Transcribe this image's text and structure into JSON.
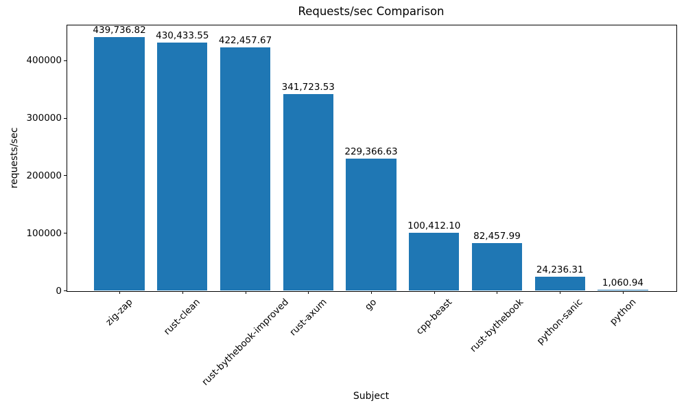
{
  "chart_data": {
    "type": "bar",
    "title": "Requests/sec Comparison",
    "xlabel": "Subject",
    "ylabel": "requests/sec",
    "categories": [
      "zig-zap",
      "rust-clean",
      "rust-bythebook-improved",
      "rust-axum",
      "go",
      "cpp-beast",
      "rust-bythebook",
      "python-sanic",
      "python"
    ],
    "values": [
      439736.82,
      430433.55,
      422457.67,
      341723.53,
      229366.63,
      100412.1,
      82457.99,
      24236.31,
      1060.94
    ],
    "value_labels": [
      "439,736.82",
      "430,433.55",
      "422,457.67",
      "341,723.53",
      "229,366.63",
      "100,412.10",
      "82,457.99",
      "24,236.31",
      "1,060.94"
    ],
    "yticks": [
      0,
      100000,
      200000,
      300000,
      400000
    ],
    "ytick_labels": [
      "0",
      "100000",
      "200000",
      "300000",
      "400000"
    ],
    "ylim": [
      0,
      461724
    ],
    "bar_color": "#1f77b4",
    "grid": false,
    "legend_position": "none"
  }
}
